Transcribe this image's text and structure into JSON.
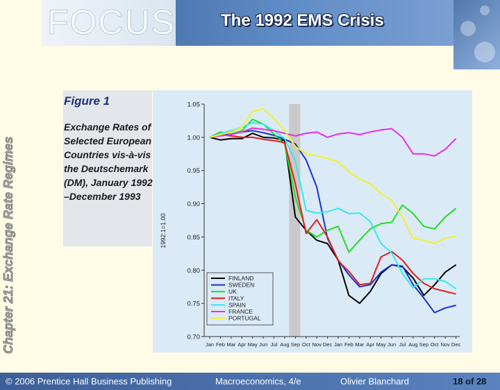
{
  "header": {
    "focus_label": "FOCUS",
    "title": "The 1992 EMS Crisis"
  },
  "sidebar": {
    "chapter_title": "Chapter 21: Exchange Rate Regimes"
  },
  "caption": {
    "figure_label": "Figure 1",
    "text": "Exchange Rates of Selected European Countries vis-à-vis the Deutschemark (DM), January 1992–December 1993"
  },
  "footer": {
    "copyright": "© 2006 Prentice Hall Business Publishing",
    "book": "Macroeconomics, 4/e",
    "author": "Olivier Blanchard",
    "page": "18 of 28"
  },
  "colors": {
    "FINLAND": "#000000",
    "SWEDEN": "#1a2fd8",
    "UK": "#22dd22",
    "ITALY": "#e11b1b",
    "SPAIN": "#33e8f0",
    "FRANCE": "#e82de0",
    "PORTUGAL": "#f2f222"
  },
  "chart_data": {
    "type": "line",
    "ylabel": "1992:1=1.00",
    "xlabel": "",
    "ylim": [
      0.7,
      1.05
    ],
    "yticks": [
      "0.70",
      "0.75",
      "0.80",
      "0.85",
      "0.90",
      "0.95",
      "1.00",
      "1.05"
    ],
    "x_ticklabels": [
      "Jan",
      "Feb",
      "Mar",
      "Apr",
      "May",
      "Jun",
      "Jul",
      "Aug",
      "Sep",
      "Oct",
      "Nov",
      "Dec",
      "Jan",
      "Feb",
      "Mar",
      "Apr",
      "May",
      "Jun",
      "Jul",
      "Aug",
      "Sep",
      "Oct",
      "Nov",
      "Dec"
    ],
    "shaded_period": "Sep 1992",
    "legend_position": "bottom-left",
    "series": [
      {
        "name": "FINLAND",
        "values": [
          1.0,
          0.996,
          0.998,
          0.998,
          1.006,
          1.0,
          0.999,
          0.995,
          0.88,
          0.86,
          0.845,
          0.84,
          0.815,
          0.762,
          0.75,
          0.768,
          0.795,
          0.808,
          0.805,
          0.788,
          0.762,
          0.778,
          0.797,
          0.808
        ]
      },
      {
        "name": "SWEDEN",
        "values": [
          1.0,
          1.003,
          1.005,
          1.008,
          1.01,
          1.007,
          1.003,
          0.997,
          0.99,
          0.966,
          0.925,
          0.848,
          0.815,
          0.793,
          0.775,
          0.778,
          0.797,
          0.808,
          0.806,
          0.778,
          0.758,
          0.736,
          0.743,
          0.747
        ]
      },
      {
        "name": "UK",
        "values": [
          1.0,
          1.008,
          1.005,
          1.01,
          1.027,
          1.02,
          1.005,
          0.99,
          0.91,
          0.86,
          0.85,
          0.86,
          0.866,
          0.827,
          0.845,
          0.862,
          0.87,
          0.872,
          0.898,
          0.885,
          0.866,
          0.862,
          0.88,
          0.893
        ]
      },
      {
        "name": "ITALY",
        "values": [
          1.0,
          1.004,
          1.002,
          1.0,
          1.0,
          0.997,
          0.995,
          0.992,
          0.93,
          0.855,
          0.876,
          0.85,
          0.814,
          0.798,
          0.778,
          0.78,
          0.82,
          0.828,
          0.815,
          0.795,
          0.78,
          0.772,
          0.768,
          0.764
        ]
      },
      {
        "name": "SPAIN",
        "values": [
          1.0,
          1.006,
          1.01,
          1.015,
          1.022,
          1.02,
          1.01,
          0.998,
          0.965,
          0.89,
          0.886,
          0.888,
          0.893,
          0.885,
          0.886,
          0.873,
          0.84,
          0.826,
          0.795,
          0.773,
          0.787,
          0.787,
          0.783,
          0.772
        ]
      },
      {
        "name": "FRANCE",
        "values": [
          1.0,
          1.002,
          1.004,
          1.008,
          1.014,
          1.012,
          1.01,
          1.006,
          1.002,
          1.006,
          1.008,
          1.0,
          1.005,
          1.007,
          1.004,
          1.008,
          1.011,
          1.013,
          1.0,
          0.975,
          0.975,
          0.972,
          0.982,
          0.998
        ]
      },
      {
        "name": "PORTUGAL",
        "values": [
          1.0,
          1.004,
          1.008,
          1.015,
          1.039,
          1.043,
          1.028,
          1.01,
          0.986,
          0.975,
          0.972,
          0.968,
          0.963,
          0.948,
          0.937,
          0.93,
          0.915,
          0.905,
          0.88,
          0.848,
          0.845,
          0.84,
          0.848,
          0.851
        ]
      }
    ]
  }
}
